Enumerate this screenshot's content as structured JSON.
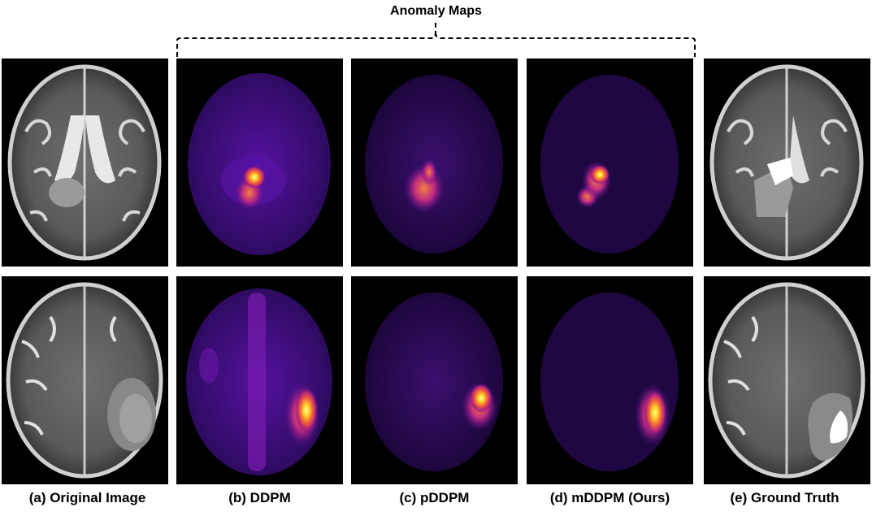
{
  "figure": {
    "group_label": "Anomaly Maps",
    "captions": {
      "original": "(a) Original Image",
      "ddpm": "(b) DDPM",
      "pddpm": "(c) pDDPM",
      "mddpm": "(d) mDDPM (Ours)",
      "ground_truth": "(e) Ground Truth"
    },
    "rows": 2,
    "columns": [
      "original",
      "ddpm",
      "pddpm",
      "mddpm",
      "ground_truth"
    ]
  }
}
